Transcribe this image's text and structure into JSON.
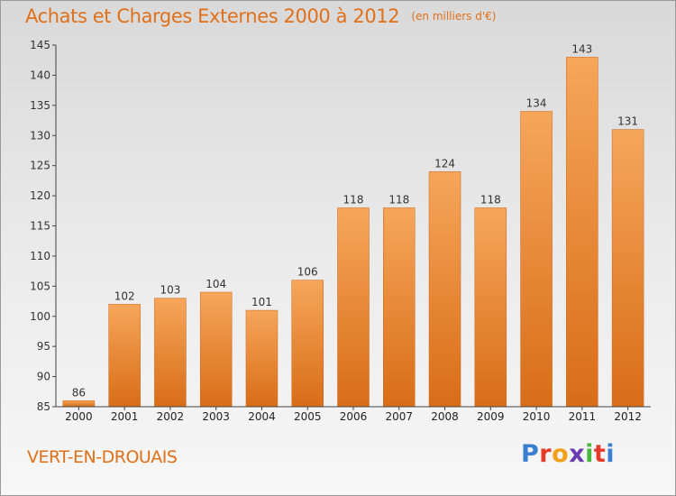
{
  "header": {
    "title": "Achats et Charges Externes 2000 à 2012",
    "subtitle": "(en milliers d'€)"
  },
  "footer": {
    "place": "VERT-EN-DROUAIS",
    "logo_text": "Proxiti",
    "logo_colors": [
      "#3a7fd0",
      "#e53a2a",
      "#f2a01a",
      "#6a3bb0",
      "#4ab840",
      "#e53a2a",
      "#3a7fd0"
    ]
  },
  "colors": {
    "bar_top": "#f6a65a",
    "bar_bottom": "#d86d18",
    "accent": "#e0701a"
  },
  "chart_data": {
    "type": "bar",
    "title": "Achats et Charges Externes 2000 à 2012",
    "subtitle": "(en milliers d'€)",
    "categories": [
      "2000",
      "2001",
      "2002",
      "2003",
      "2004",
      "2005",
      "2006",
      "2007",
      "2008",
      "2009",
      "2010",
      "2011",
      "2012"
    ],
    "values": [
      86,
      102,
      103,
      104,
      101,
      106,
      118,
      118,
      124,
      118,
      134,
      143,
      131
    ],
    "ylim": [
      85,
      145
    ],
    "yticks": [
      85,
      90,
      95,
      100,
      105,
      110,
      115,
      120,
      125,
      130,
      135,
      140,
      145
    ],
    "grid": false,
    "data_labels": true
  }
}
